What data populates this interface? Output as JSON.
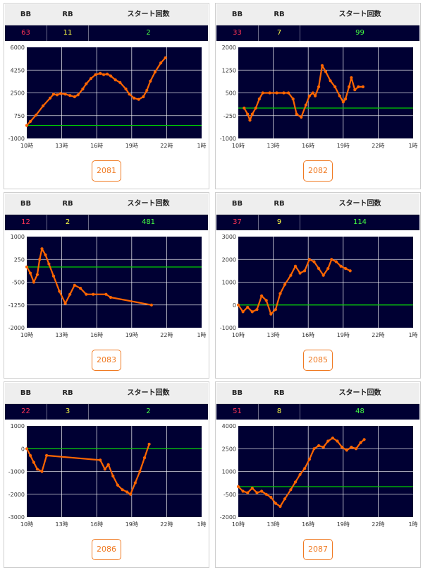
{
  "headers": {
    "bb": "BB",
    "rb": "RB",
    "start": "スタート回数"
  },
  "x_axis_labels": [
    "10時",
    "13時",
    "16時",
    "19時",
    "22時",
    "1時"
  ],
  "colors": {
    "plot_bg": "#000033",
    "line": "#ff6600",
    "baseline": "#00cc00",
    "grid": "#ffffff",
    "bb": "#ff3355",
    "rb": "#ffff44",
    "start": "#44ff44",
    "button": "#f07a22"
  },
  "machines": [
    {
      "id": "2081",
      "bb": "63",
      "rb": "11",
      "start": "2",
      "chart_data": {
        "type": "line",
        "x_labels": [
          "10時",
          "13時",
          "16時",
          "19時",
          "22時",
          "1時"
        ],
        "ylim": [
          -1000,
          6000
        ],
        "y_ticks": [
          "6000",
          "4250",
          "2500",
          "750",
          "-1000"
        ],
        "baseline": 0,
        "series": [
          {
            "values": [
              [
                10.0,
                0
              ],
              [
                10.3,
                300
              ],
              [
                10.8,
                800
              ],
              [
                11.4,
                1500
              ],
              [
                12.0,
                2100
              ],
              [
                12.3,
                2400
              ],
              [
                12.6,
                2350
              ],
              [
                12.9,
                2450
              ],
              [
                13.3,
                2400
              ],
              [
                13.7,
                2300
              ],
              [
                14.1,
                2200
              ],
              [
                14.4,
                2350
              ],
              [
                14.8,
                2800
              ],
              [
                15.1,
                3200
              ],
              [
                15.5,
                3600
              ],
              [
                15.9,
                3900
              ],
              [
                16.3,
                4000
              ],
              [
                16.6,
                3900
              ],
              [
                16.9,
                3950
              ],
              [
                17.2,
                3800
              ],
              [
                17.6,
                3500
              ],
              [
                18.0,
                3300
              ],
              [
                18.5,
                2800
              ],
              [
                18.8,
                2400
              ],
              [
                19.2,
                2100
              ],
              [
                19.6,
                2000
              ],
              [
                20.0,
                2200
              ],
              [
                20.3,
                2700
              ],
              [
                20.6,
                3400
              ],
              [
                21.0,
                4100
              ],
              [
                21.5,
                4800
              ],
              [
                21.9,
                5200
              ]
            ]
          }
        ]
      }
    },
    {
      "id": "2082",
      "bb": "33",
      "rb": "7",
      "start": "99",
      "chart_data": {
        "type": "line",
        "x_labels": [
          "10時",
          "13時",
          "16時",
          "19時",
          "22時",
          "1時"
        ],
        "ylim": [
          -1000,
          2000
        ],
        "y_ticks": [
          "2000",
          "1250",
          "500",
          "-250",
          "-1000"
        ],
        "baseline": 0,
        "series": [
          {
            "values": [
              [
                10.5,
                0
              ],
              [
                10.8,
                -200
              ],
              [
                11.0,
                -400
              ],
              [
                11.2,
                -200
              ],
              [
                11.5,
                0
              ],
              [
                11.8,
                300
              ],
              [
                12.1,
                500
              ],
              [
                12.7,
                500
              ],
              [
                13.3,
                500
              ],
              [
                13.9,
                500
              ],
              [
                14.3,
                500
              ],
              [
                14.7,
                300
              ],
              [
                15.0,
                -200
              ],
              [
                15.4,
                -300
              ],
              [
                15.8,
                100
              ],
              [
                16.1,
                400
              ],
              [
                16.4,
                500
              ],
              [
                16.6,
                400
              ],
              [
                16.9,
                700
              ],
              [
                17.2,
                1400
              ],
              [
                17.5,
                1200
              ],
              [
                17.9,
                900
              ],
              [
                18.3,
                700
              ],
              [
                18.7,
                400
              ],
              [
                19.0,
                200
              ],
              [
                19.2,
                300
              ],
              [
                19.5,
                700
              ],
              [
                19.7,
                1000
              ],
              [
                20.0,
                600
              ],
              [
                20.3,
                700
              ],
              [
                20.7,
                700
              ]
            ]
          }
        ]
      }
    },
    {
      "id": "2083",
      "bb": "12",
      "rb": "2",
      "start": "481",
      "chart_data": {
        "type": "line",
        "x_labels": [
          "10時",
          "13時",
          "16時",
          "19時",
          "22時",
          "1時"
        ],
        "ylim": [
          -2000,
          1000
        ],
        "y_ticks": [
          "1000",
          "250",
          "-500",
          "-1250",
          "-2000"
        ],
        "baseline": 0,
        "series": [
          {
            "values": [
              [
                10.0,
                0
              ],
              [
                10.3,
                -200
              ],
              [
                10.6,
                -500
              ],
              [
                10.9,
                -250
              ],
              [
                11.1,
                250
              ],
              [
                11.3,
                600
              ],
              [
                11.6,
                400
              ],
              [
                11.9,
                100
              ],
              [
                12.3,
                -300
              ],
              [
                12.8,
                -800
              ],
              [
                13.3,
                -1200
              ],
              [
                13.7,
                -900
              ],
              [
                14.1,
                -600
              ],
              [
                14.6,
                -700
              ],
              [
                15.1,
                -900
              ],
              [
                15.7,
                -900
              ],
              [
                16.8,
                -900
              ],
              [
                17.2,
                -1000
              ],
              [
                20.7,
                -1250
              ]
            ]
          }
        ]
      }
    },
    {
      "id": "2085",
      "bb": "37",
      "rb": "9",
      "start": "114",
      "chart_data": {
        "type": "line",
        "x_labels": [
          "10時",
          "13時",
          "16時",
          "19時",
          "22時",
          "1時"
        ],
        "ylim": [
          -1000,
          3000
        ],
        "y_ticks": [
          "3000",
          "2000",
          "1000",
          "0",
          "-1000"
        ],
        "baseline": 0,
        "series": [
          {
            "values": [
              [
                10.0,
                0
              ],
              [
                10.4,
                -300
              ],
              [
                10.8,
                -100
              ],
              [
                11.2,
                -300
              ],
              [
                11.6,
                -200
              ],
              [
                12.0,
                400
              ],
              [
                12.4,
                200
              ],
              [
                12.8,
                -400
              ],
              [
                13.2,
                -200
              ],
              [
                13.6,
                500
              ],
              [
                14.0,
                900
              ],
              [
                14.5,
                1300
              ],
              [
                14.9,
                1700
              ],
              [
                15.3,
                1400
              ],
              [
                15.7,
                1500
              ],
              [
                16.1,
                2000
              ],
              [
                16.5,
                1900
              ],
              [
                16.9,
                1600
              ],
              [
                17.3,
                1300
              ],
              [
                17.7,
                1600
              ],
              [
                18.0,
                2000
              ],
              [
                18.4,
                1900
              ],
              [
                18.8,
                1700
              ],
              [
                19.2,
                1600
              ],
              [
                19.6,
                1500
              ]
            ]
          }
        ]
      }
    },
    {
      "id": "2086",
      "bb": "22",
      "rb": "3",
      "start": "2",
      "chart_data": {
        "type": "line",
        "x_labels": [
          "10時",
          "13時",
          "16時",
          "19時",
          "22時",
          "1時"
        ],
        "ylim": [
          -3000,
          1000
        ],
        "y_ticks": [
          "1000",
          "0",
          "-1000",
          "-2000",
          "-3000"
        ],
        "baseline": 0,
        "series": [
          {
            "values": [
              [
                10.0,
                0
              ],
              [
                10.3,
                -300
              ],
              [
                10.6,
                -600
              ],
              [
                10.9,
                -900
              ],
              [
                11.3,
                -1000
              ],
              [
                11.7,
                -300
              ],
              [
                16.3,
                -500
              ],
              [
                16.7,
                -900
              ],
              [
                17.0,
                -700
              ],
              [
                17.4,
                -1200
              ],
              [
                17.8,
                -1600
              ],
              [
                18.2,
                -1800
              ],
              [
                18.6,
                -1900
              ],
              [
                18.9,
                -2000
              ],
              [
                19.3,
                -1500
              ],
              [
                19.7,
                -1000
              ],
              [
                20.1,
                -400
              ],
              [
                20.5,
                200
              ]
            ]
          }
        ]
      }
    },
    {
      "id": "2087",
      "bb": "51",
      "rb": "8",
      "start": "48",
      "chart_data": {
        "type": "line",
        "x_labels": [
          "10時",
          "13時",
          "16時",
          "19時",
          "22時",
          "1時"
        ],
        "ylim": [
          -2000,
          4000
        ],
        "y_ticks": [
          "4000",
          "2500",
          "1000",
          "-500",
          "-2000"
        ],
        "baseline": 0,
        "series": [
          {
            "values": [
              [
                10.0,
                0
              ],
              [
                10.4,
                -300
              ],
              [
                10.8,
                -400
              ],
              [
                11.2,
                -100
              ],
              [
                11.6,
                -400
              ],
              [
                12.0,
                -300
              ],
              [
                12.4,
                -500
              ],
              [
                12.8,
                -700
              ],
              [
                13.2,
                -1100
              ],
              [
                13.6,
                -1300
              ],
              [
                14.0,
                -800
              ],
              [
                14.5,
                -200
              ],
              [
                14.9,
                300
              ],
              [
                15.3,
                800
              ],
              [
                15.7,
                1200
              ],
              [
                16.1,
                1800
              ],
              [
                16.5,
                2500
              ],
              [
                16.9,
                2700
              ],
              [
                17.3,
                2600
              ],
              [
                17.7,
                3000
              ],
              [
                18.1,
                3200
              ],
              [
                18.5,
                3000
              ],
              [
                18.9,
                2600
              ],
              [
                19.3,
                2400
              ],
              [
                19.7,
                2600
              ],
              [
                20.1,
                2500
              ],
              [
                20.5,
                2900
              ],
              [
                20.8,
                3100
              ]
            ]
          }
        ]
      }
    }
  ]
}
